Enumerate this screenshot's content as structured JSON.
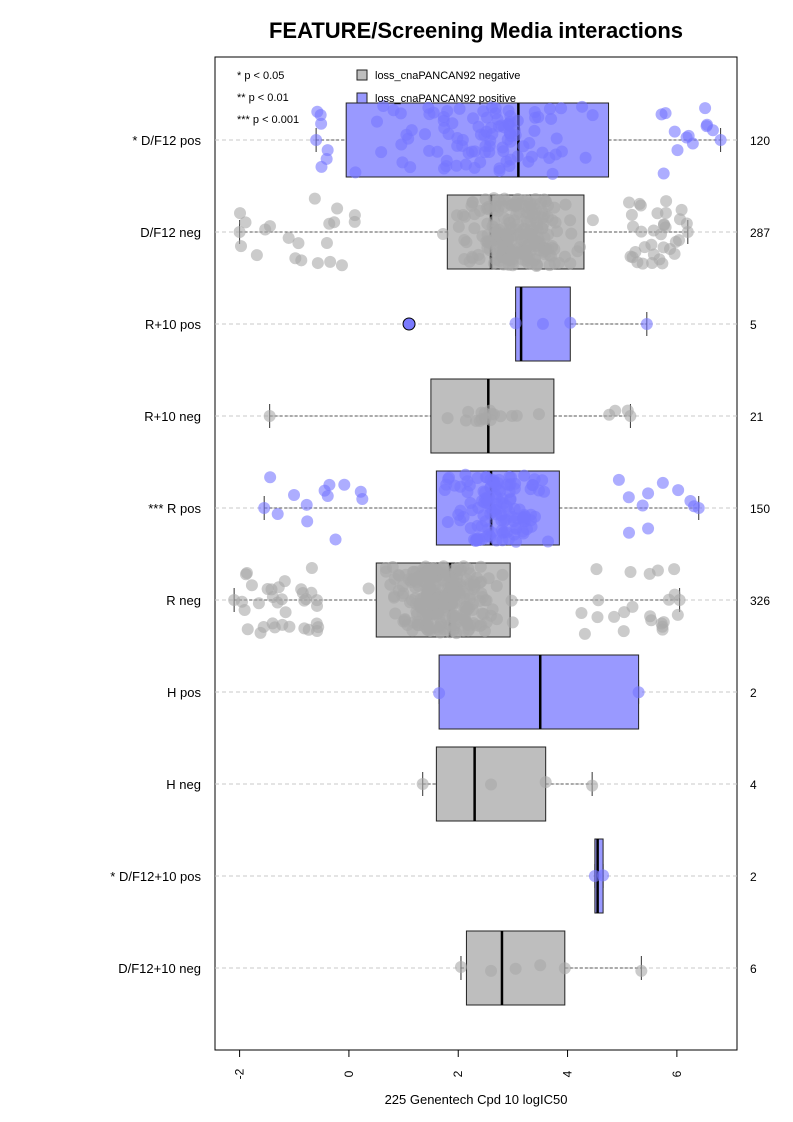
{
  "chart_data": {
    "type": "boxplot",
    "title": "FEATURE/Screening Media interactions",
    "xlabel": "225 Genentech Cpd 10 logIC50",
    "xlim": [
      -2.45,
      7.1
    ],
    "xticks": [
      -2,
      0,
      2,
      4,
      6
    ],
    "xtick_labels": [
      "-2",
      "0",
      "2",
      "4",
      "6"
    ],
    "grid": "horizontal dashed lines",
    "significance_legend": [
      "* p < 0.05",
      "** p < 0.01",
      "*** p < 0.001"
    ],
    "series_legend": [
      {
        "name": "loss_cnaPANCAN92 negative",
        "color": "#bebebe"
      },
      {
        "name": "loss_cnaPANCAN92 positive",
        "color": "#9999ff"
      }
    ],
    "colors": {
      "negative_fill": "#bebebe",
      "negative_point": "#a8a8a8",
      "positive_fill": "#9999ff",
      "positive_point": "#7777ff",
      "outlier_point": "#7a7aff"
    },
    "groups": [
      {
        "label": "* D/F12 pos",
        "count": "120",
        "status": "positive",
        "min": -0.6,
        "q1": -0.05,
        "median": 3.1,
        "q3": 4.75,
        "max": 6.8,
        "n_points": 120,
        "outliers": []
      },
      {
        "label": "D/F12 neg",
        "count": "287",
        "status": "negative",
        "min": -2.0,
        "q1": 1.8,
        "median": 2.6,
        "q3": 4.3,
        "max": 6.2,
        "n_points": 287,
        "outliers": []
      },
      {
        "label": "R+10 pos",
        "count": "5",
        "status": "positive",
        "min": 3.05,
        "q1": 3.05,
        "median": 3.15,
        "q3": 4.05,
        "max": 5.45,
        "n_points": 4,
        "outliers": [
          1.1
        ]
      },
      {
        "label": "R+10 neg",
        "count": "21",
        "status": "negative",
        "min": -1.45,
        "q1": 1.5,
        "median": 2.55,
        "q3": 3.75,
        "max": 5.15,
        "n_points": 21,
        "outliers": []
      },
      {
        "label": "*** R pos",
        "count": "150",
        "status": "positive",
        "min": -1.55,
        "q1": 1.6,
        "median": 2.6,
        "q3": 3.85,
        "max": 6.4,
        "n_points": 150,
        "outliers": []
      },
      {
        "label": "R neg",
        "count": "326",
        "status": "negative",
        "min": -2.1,
        "q1": 0.5,
        "median": 1.85,
        "q3": 2.95,
        "max": 6.05,
        "n_points": 326,
        "outliers": []
      },
      {
        "label": "H pos",
        "count": "2",
        "status": "positive",
        "min": 1.65,
        "q1": 1.65,
        "median": 3.5,
        "q3": 5.3,
        "max": 5.3,
        "n_points": 2,
        "outliers": []
      },
      {
        "label": "H neg",
        "count": "4",
        "status": "negative",
        "min": 1.35,
        "q1": 1.6,
        "median": 2.3,
        "q3": 3.6,
        "max": 4.45,
        "n_points": 4,
        "outliers": []
      },
      {
        "label": "* D/F12+10 pos",
        "count": "2",
        "status": "positive",
        "min": 4.5,
        "q1": 4.5,
        "median": 4.55,
        "q3": 4.65,
        "max": 4.65,
        "n_points": 2,
        "outliers": []
      },
      {
        "label": "D/F12+10 neg",
        "count": "6",
        "status": "negative",
        "min": 2.05,
        "q1": 2.15,
        "median": 2.8,
        "q3": 3.95,
        "max": 5.35,
        "n_points": 6,
        "outliers": []
      }
    ]
  }
}
